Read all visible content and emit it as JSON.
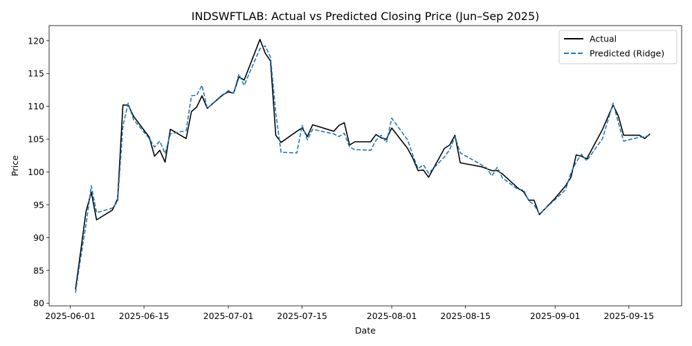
{
  "chart_data": {
    "type": "line",
    "title": "INDSWFTLAB: Actual vs Predicted Closing Price (Jun–Sep 2025)",
    "xlabel": "Date",
    "ylabel": "Price",
    "xlim": [
      "2025-05-28",
      "2025-09-25"
    ],
    "ylim": [
      79.6,
      122.3
    ],
    "x_ticks": [
      "2025-06-01",
      "2025-06-15",
      "2025-07-01",
      "2025-07-15",
      "2025-08-01",
      "2025-08-15",
      "2025-09-01",
      "2025-09-15"
    ],
    "y_ticks": [
      80,
      85,
      90,
      95,
      100,
      105,
      110,
      115,
      120
    ],
    "legend_position": "top-right",
    "grid": false,
    "series": [
      {
        "name": "Actual",
        "style": "solid",
        "color": "#000000",
        "points": [
          [
            "2025-06-02",
            82.1
          ],
          [
            "2025-06-03",
            88.0
          ],
          [
            "2025-06-04",
            94.0
          ],
          [
            "2025-06-05",
            96.9
          ],
          [
            "2025-06-06",
            92.7
          ],
          [
            "2025-06-09",
            94.2
          ],
          [
            "2025-06-10",
            95.9
          ],
          [
            "2025-06-11",
            110.2
          ],
          [
            "2025-06-12",
            110.2
          ],
          [
            "2025-06-13",
            108.5
          ],
          [
            "2025-06-16",
            105.3
          ],
          [
            "2025-06-17",
            102.4
          ],
          [
            "2025-06-18",
            103.3
          ],
          [
            "2025-06-19",
            101.5
          ],
          [
            "2025-06-20",
            106.5
          ],
          [
            "2025-06-23",
            105.1
          ],
          [
            "2025-06-24",
            109.2
          ],
          [
            "2025-06-25",
            109.9
          ],
          [
            "2025-06-26",
            111.6
          ],
          [
            "2025-06-27",
            109.7
          ],
          [
            "2025-06-30",
            111.8
          ],
          [
            "2025-07-01",
            112.2
          ],
          [
            "2025-07-02",
            112.0
          ],
          [
            "2025-07-03",
            114.5
          ],
          [
            "2025-07-04",
            114.0
          ],
          [
            "2025-07-07",
            120.2
          ],
          [
            "2025-07-08",
            118.1
          ],
          [
            "2025-07-09",
            116.9
          ],
          [
            "2025-07-10",
            105.6
          ],
          [
            "2025-07-11",
            104.5
          ],
          [
            "2025-07-14",
            106.2
          ],
          [
            "2025-07-15",
            106.7
          ],
          [
            "2025-07-16",
            105.4
          ],
          [
            "2025-07-17",
            107.2
          ],
          [
            "2025-07-21",
            106.2
          ],
          [
            "2025-07-22",
            107.1
          ],
          [
            "2025-07-23",
            107.5
          ],
          [
            "2025-07-24",
            104.1
          ],
          [
            "2025-07-25",
            104.6
          ],
          [
            "2025-07-28",
            104.6
          ],
          [
            "2025-07-29",
            105.7
          ],
          [
            "2025-07-30",
            105.2
          ],
          [
            "2025-07-31",
            105.0
          ],
          [
            "2025-08-01",
            106.7
          ],
          [
            "2025-08-04",
            103.6
          ],
          [
            "2025-08-05",
            102.1
          ],
          [
            "2025-08-06",
            100.2
          ],
          [
            "2025-08-07",
            100.3
          ],
          [
            "2025-08-08",
            99.2
          ],
          [
            "2025-08-11",
            103.6
          ],
          [
            "2025-08-12",
            104.1
          ],
          [
            "2025-08-13",
            105.6
          ],
          [
            "2025-08-14",
            101.4
          ],
          [
            "2025-08-18",
            100.8
          ],
          [
            "2025-08-19",
            100.5
          ],
          [
            "2025-08-20",
            100.2
          ],
          [
            "2025-08-21",
            100.2
          ],
          [
            "2025-08-22",
            99.7
          ],
          [
            "2025-08-25",
            97.5
          ],
          [
            "2025-08-26",
            97.0
          ],
          [
            "2025-08-27",
            95.7
          ],
          [
            "2025-08-28",
            95.7
          ],
          [
            "2025-08-29",
            93.5
          ],
          [
            "2025-09-01",
            96.0
          ],
          [
            "2025-09-03",
            97.9
          ],
          [
            "2025-09-04",
            99.2
          ],
          [
            "2025-09-05",
            102.6
          ],
          [
            "2025-09-06",
            102.4
          ],
          [
            "2025-09-07",
            102.0
          ],
          [
            "2025-09-10",
            106.5
          ],
          [
            "2025-09-12",
            110.2
          ],
          [
            "2025-09-13",
            108.5
          ],
          [
            "2025-09-14",
            105.6
          ],
          [
            "2025-09-17",
            105.6
          ],
          [
            "2025-09-18",
            105.1
          ],
          [
            "2025-09-19",
            105.8
          ]
        ]
      },
      {
        "name": "Predicted (Ridge)",
        "style": "dashed",
        "color": "#1f77b4",
        "points": [
          [
            "2025-06-02",
            81.6
          ],
          [
            "2025-06-03",
            87.0
          ],
          [
            "2025-06-04",
            92.0
          ],
          [
            "2025-06-05",
            97.9
          ],
          [
            "2025-06-06",
            93.8
          ],
          [
            "2025-06-09",
            94.5
          ],
          [
            "2025-06-10",
            95.5
          ],
          [
            "2025-06-11",
            107.0
          ],
          [
            "2025-06-12",
            110.5
          ],
          [
            "2025-06-13",
            108.0
          ],
          [
            "2025-06-16",
            105.1
          ],
          [
            "2025-06-17",
            103.8
          ],
          [
            "2025-06-18",
            104.7
          ],
          [
            "2025-06-19",
            102.8
          ],
          [
            "2025-06-20",
            105.8
          ],
          [
            "2025-06-23",
            106.3
          ],
          [
            "2025-06-24",
            111.6
          ],
          [
            "2025-06-25",
            111.7
          ],
          [
            "2025-06-26",
            113.2
          ],
          [
            "2025-06-27",
            109.7
          ],
          [
            "2025-06-30",
            111.7
          ],
          [
            "2025-07-01",
            112.4
          ],
          [
            "2025-07-02",
            112.0
          ],
          [
            "2025-07-03",
            114.9
          ],
          [
            "2025-07-04",
            113.2
          ],
          [
            "2025-07-07",
            118.8
          ],
          [
            "2025-07-08",
            119.2
          ],
          [
            "2025-07-09",
            117.5
          ],
          [
            "2025-07-10",
            109.0
          ],
          [
            "2025-07-11",
            103.0
          ],
          [
            "2025-07-14",
            102.9
          ],
          [
            "2025-07-15",
            107.1
          ],
          [
            "2025-07-16",
            104.9
          ],
          [
            "2025-07-17",
            106.5
          ],
          [
            "2025-07-21",
            105.8
          ],
          [
            "2025-07-22",
            105.4
          ],
          [
            "2025-07-23",
            105.9
          ],
          [
            "2025-07-24",
            103.8
          ],
          [
            "2025-07-25",
            103.4
          ],
          [
            "2025-07-28",
            103.3
          ],
          [
            "2025-07-29",
            104.8
          ],
          [
            "2025-07-30",
            105.6
          ],
          [
            "2025-07-31",
            104.5
          ],
          [
            "2025-08-01",
            108.2
          ],
          [
            "2025-08-04",
            104.9
          ],
          [
            "2025-08-05",
            102.6
          ],
          [
            "2025-08-06",
            100.5
          ],
          [
            "2025-08-07",
            101.1
          ],
          [
            "2025-08-08",
            99.8
          ],
          [
            "2025-08-11",
            102.3
          ],
          [
            "2025-08-12",
            103.4
          ],
          [
            "2025-08-13",
            105.4
          ],
          [
            "2025-08-14",
            102.9
          ],
          [
            "2025-08-18",
            101.1
          ],
          [
            "2025-08-19",
            100.6
          ],
          [
            "2025-08-20",
            99.4
          ],
          [
            "2025-08-21",
            100.7
          ],
          [
            "2025-08-22",
            99.1
          ],
          [
            "2025-08-25",
            97.3
          ],
          [
            "2025-08-26",
            97.3
          ],
          [
            "2025-08-27",
            95.6
          ],
          [
            "2025-08-28",
            95.0
          ],
          [
            "2025-08-29",
            93.6
          ],
          [
            "2025-09-01",
            95.8
          ],
          [
            "2025-09-03",
            97.3
          ],
          [
            "2025-09-04",
            99.9
          ],
          [
            "2025-09-05",
            101.5
          ],
          [
            "2025-09-06",
            102.7
          ],
          [
            "2025-09-07",
            101.7
          ],
          [
            "2025-09-10",
            105.1
          ],
          [
            "2025-09-12",
            110.5
          ],
          [
            "2025-09-13",
            107.5
          ],
          [
            "2025-09-14",
            104.7
          ],
          [
            "2025-09-17",
            105.3
          ],
          [
            "2025-09-18",
            105.4
          ],
          [
            "2025-09-19",
            105.6
          ]
        ]
      }
    ]
  }
}
